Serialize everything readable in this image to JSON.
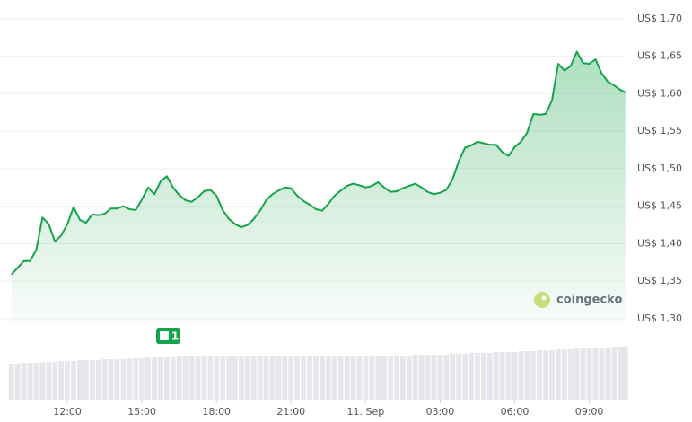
{
  "chart_data": {
    "type": "area",
    "x": [
      9.75,
      10,
      10.25,
      10.5,
      10.75,
      11,
      11.25,
      11.5,
      11.75,
      12,
      12.25,
      12.5,
      12.75,
      13,
      13.25,
      13.5,
      13.75,
      14,
      14.25,
      14.5,
      14.75,
      15,
      15.25,
      15.5,
      15.75,
      16,
      16.25,
      16.5,
      16.75,
      17,
      17.25,
      17.5,
      17.75,
      18,
      18.25,
      18.5,
      18.75,
      19,
      19.25,
      19.5,
      19.75,
      20,
      20.25,
      20.5,
      20.75,
      21,
      21.25,
      21.5,
      21.75,
      22,
      22.25,
      22.5,
      22.75,
      23,
      23.25,
      23.5,
      23.75,
      24,
      24.25,
      24.5,
      24.75,
      25,
      25.25,
      25.5,
      25.75,
      26,
      26.25,
      26.5,
      26.75,
      27,
      27.25,
      27.5,
      27.75,
      28,
      28.25,
      28.5,
      28.75,
      29,
      29.25,
      29.5,
      29.75,
      30,
      30.25,
      30.5,
      30.75,
      31,
      31.25,
      31.5,
      31.75,
      32,
      32.25,
      32.5,
      32.75,
      33,
      33.25,
      33.5,
      33.75,
      34,
      34.25,
      34.45
    ],
    "series": [
      {
        "color": "#16a34a",
        "values": [
          1.359,
          1.368,
          1.377,
          1.377,
          1.392,
          1.435,
          1.426,
          1.403,
          1.411,
          1.426,
          1.449,
          1.432,
          1.428,
          1.439,
          1.438,
          1.44,
          1.447,
          1.447,
          1.45,
          1.446,
          1.445,
          1.459,
          1.475,
          1.466,
          1.483,
          1.49,
          1.475,
          1.465,
          1.458,
          1.456,
          1.462,
          1.47,
          1.472,
          1.464,
          1.445,
          1.433,
          1.426,
          1.422,
          1.425,
          1.433,
          1.444,
          1.458,
          1.466,
          1.471,
          1.475,
          1.474,
          1.464,
          1.457,
          1.452,
          1.446,
          1.444,
          1.453,
          1.464,
          1.471,
          1.477,
          1.48,
          1.478,
          1.475,
          1.477,
          1.482,
          1.475,
          1.469,
          1.47,
          1.474,
          1.477,
          1.48,
          1.475,
          1.469,
          1.466,
          1.468,
          1.472,
          1.486,
          1.51,
          1.528,
          1.531,
          1.536,
          1.534,
          1.532,
          1.532,
          1.522,
          1.517,
          1.529,
          1.536,
          1.548,
          1.573,
          1.572,
          1.573,
          1.591,
          1.64,
          1.631,
          1.637,
          1.656,
          1.641,
          1.64,
          1.646,
          1.627,
          1.616,
          1.611,
          1.605,
          1.602
        ]
      },
      {
        "color": "#e5e7eb",
        "values": [
          40,
          40,
          41,
          41,
          41,
          42,
          42,
          42,
          43,
          43,
          43,
          44,
          44,
          44,
          44,
          45,
          45,
          45,
          45,
          46,
          46,
          46,
          47,
          47,
          47,
          47,
          47,
          48,
          48,
          48,
          48,
          48,
          48,
          48,
          48,
          48,
          48,
          48,
          48,
          48,
          48,
          48,
          48,
          48,
          48,
          48,
          48,
          48,
          48,
          49,
          49,
          49,
          49,
          49,
          49,
          49,
          49,
          49,
          49,
          49,
          49,
          49,
          49,
          49,
          49,
          50,
          50,
          50,
          50,
          50,
          50,
          51,
          51,
          51,
          52,
          52,
          52,
          52,
          53,
          53,
          53,
          53,
          54,
          54,
          54,
          55,
          55,
          55,
          56,
          56,
          56,
          57,
          57,
          57,
          57,
          57,
          57,
          58,
          58,
          58
        ]
      }
    ],
    "xlim": [
      9.65,
      34.46
    ],
    "xticks": [
      {
        "value": 12,
        "label": "12:00"
      },
      {
        "value": 15,
        "label": "15:00"
      },
      {
        "value": 18,
        "label": "18:00"
      },
      {
        "value": 21,
        "label": "21:00"
      },
      {
        "value": 24,
        "label": "11. Sep"
      },
      {
        "value": 27,
        "label": "03:00"
      },
      {
        "value": 30,
        "label": "06:00"
      },
      {
        "value": 33,
        "label": "09:00"
      }
    ],
    "ylim": [
      1.294,
      1.725
    ],
    "yticks": [
      {
        "value": 1.3,
        "label": "US$ 1,30"
      },
      {
        "value": 1.35,
        "label": "US$ 1,35"
      },
      {
        "value": 1.4,
        "label": "US$ 1,40"
      },
      {
        "value": 1.45,
        "label": "US$ 1,45"
      },
      {
        "value": 1.5,
        "label": "US$ 1,50"
      },
      {
        "value": 1.55,
        "label": "US$ 1,55"
      },
      {
        "value": 1.6,
        "label": "US$ 1,60"
      },
      {
        "value": 1.65,
        "label": "US$ 1,65"
      },
      {
        "value": 1.7,
        "label": "US$ 1,70"
      }
    ],
    "grid": true,
    "annotations": [
      "1",
      "coingecko"
    ]
  }
}
